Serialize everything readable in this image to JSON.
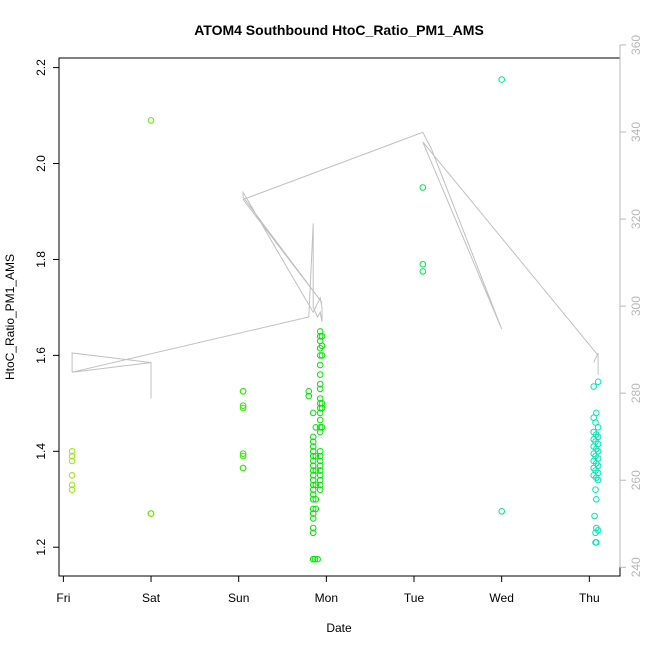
{
  "chart_data": {
    "type": "scatter",
    "title": "ATOM4 Southbound HtoC_Ratio_PM1_AMS",
    "xlabel": "Date",
    "ylabel": "HtoC_Ratio_PM1_AMS",
    "x_ticks": [
      "Fri",
      "Sat",
      "Sun",
      "Mon",
      "Tue",
      "Wed",
      "Thu"
    ],
    "xlim": [
      -0.05,
      6.35
    ],
    "ylim": [
      1.14,
      2.22
    ],
    "y_ticks": [
      1.2,
      1.4,
      1.6,
      1.8,
      2.0,
      2.2
    ],
    "y2lim": [
      238,
      357
    ],
    "y2_ticks": [
      240,
      260,
      280,
      300,
      320,
      340,
      360
    ],
    "grid": false,
    "point_colors": {
      "fri": "#99e600",
      "sat": "#66e600",
      "sun": "#33e600",
      "mon": "#00e600",
      "tue": "#00e64d",
      "wed": "#00e680",
      "thu": "#00e6b3"
    },
    "overlay_line_color": "#c0c0c0",
    "series": [
      {
        "color_key": "fri",
        "points": [
          [
            0.1,
            1.4
          ],
          [
            0.1,
            1.38
          ],
          [
            0.1,
            1.39
          ],
          [
            0.1,
            1.35
          ],
          [
            0.1,
            1.33
          ],
          [
            0.1,
            1.32
          ]
        ]
      },
      {
        "color_key": "sat",
        "points": [
          [
            1.0,
            2.09
          ],
          [
            1.0,
            1.27
          ],
          [
            1.0,
            1.27
          ]
        ]
      },
      {
        "color_key": "sun",
        "points": [
          [
            2.05,
            1.525
          ],
          [
            2.05,
            1.525
          ],
          [
            2.05,
            1.495
          ],
          [
            2.05,
            1.49
          ],
          [
            2.05,
            1.395
          ],
          [
            2.05,
            1.39
          ],
          [
            2.05,
            1.365
          ],
          [
            2.05,
            1.365
          ]
        ]
      },
      {
        "color_key": "mon",
        "points": [
          [
            2.8,
            1.525
          ],
          [
            2.8,
            1.515
          ],
          [
            2.85,
            1.48
          ],
          [
            2.85,
            1.43
          ],
          [
            2.85,
            1.42
          ],
          [
            2.85,
            1.41
          ],
          [
            2.85,
            1.4
          ],
          [
            2.85,
            1.39
          ],
          [
            2.85,
            1.38
          ],
          [
            2.85,
            1.37
          ],
          [
            2.85,
            1.36
          ],
          [
            2.85,
            1.35
          ],
          [
            2.85,
            1.34
          ],
          [
            2.85,
            1.33
          ],
          [
            2.85,
            1.32
          ],
          [
            2.85,
            1.31
          ],
          [
            2.85,
            1.3
          ],
          [
            2.85,
            1.28
          ],
          [
            2.85,
            1.27
          ],
          [
            2.85,
            1.26
          ],
          [
            2.85,
            1.24
          ],
          [
            2.85,
            1.23
          ],
          [
            2.85,
            1.175
          ],
          [
            2.87,
            1.175
          ],
          [
            2.9,
            1.175
          ],
          [
            2.88,
            1.45
          ],
          [
            2.88,
            1.39
          ],
          [
            2.88,
            1.36
          ],
          [
            2.88,
            1.33
          ],
          [
            2.88,
            1.3
          ],
          [
            2.88,
            1.28
          ],
          [
            2.93,
            1.65
          ],
          [
            2.93,
            1.64
          ],
          [
            2.93,
            1.63
          ],
          [
            2.93,
            1.615
          ],
          [
            2.93,
            1.6
          ],
          [
            2.93,
            1.58
          ],
          [
            2.93,
            1.56
          ],
          [
            2.93,
            1.54
          ],
          [
            2.93,
            1.53
          ],
          [
            2.93,
            1.51
          ],
          [
            2.93,
            1.5
          ],
          [
            2.93,
            1.49
          ],
          [
            2.93,
            1.48
          ],
          [
            2.93,
            1.465
          ],
          [
            2.93,
            1.45
          ],
          [
            2.93,
            1.44
          ],
          [
            2.93,
            1.4
          ],
          [
            2.93,
            1.39
          ],
          [
            2.93,
            1.38
          ],
          [
            2.93,
            1.37
          ],
          [
            2.93,
            1.36
          ],
          [
            2.93,
            1.35
          ],
          [
            2.93,
            1.34
          ],
          [
            2.93,
            1.33
          ],
          [
            2.93,
            1.32
          ],
          [
            2.95,
            1.64
          ],
          [
            2.95,
            1.62
          ],
          [
            2.95,
            1.6
          ],
          [
            2.95,
            1.5
          ],
          [
            2.95,
            1.49
          ],
          [
            2.95,
            1.45
          ]
        ]
      },
      {
        "color_key": "tue",
        "points": [
          [
            4.1,
            1.95
          ],
          [
            4.1,
            1.79
          ],
          [
            4.1,
            1.775
          ]
        ]
      },
      {
        "color_key": "wed",
        "points": [
          [
            5.0,
            2.175
          ],
          [
            5.0,
            1.275
          ]
        ]
      },
      {
        "color_key": "thu",
        "points": [
          [
            6.05,
            1.535
          ],
          [
            6.1,
            1.545
          ],
          [
            6.08,
            1.48
          ],
          [
            6.05,
            1.47
          ],
          [
            6.07,
            1.46
          ],
          [
            6.1,
            1.45
          ],
          [
            6.05,
            1.44
          ],
          [
            6.08,
            1.435
          ],
          [
            6.1,
            1.43
          ],
          [
            6.05,
            1.425
          ],
          [
            6.07,
            1.42
          ],
          [
            6.1,
            1.415
          ],
          [
            6.05,
            1.41
          ],
          [
            6.08,
            1.405
          ],
          [
            6.1,
            1.4
          ],
          [
            6.05,
            1.395
          ],
          [
            6.07,
            1.39
          ],
          [
            6.1,
            1.385
          ],
          [
            6.05,
            1.38
          ],
          [
            6.08,
            1.375
          ],
          [
            6.1,
            1.37
          ],
          [
            6.05,
            1.365
          ],
          [
            6.07,
            1.36
          ],
          [
            6.1,
            1.355
          ],
          [
            6.05,
            1.35
          ],
          [
            6.08,
            1.345
          ],
          [
            6.1,
            1.34
          ],
          [
            6.07,
            1.32
          ],
          [
            6.08,
            1.3
          ],
          [
            6.06,
            1.265
          ],
          [
            6.08,
            1.24
          ],
          [
            6.1,
            1.235
          ],
          [
            6.07,
            1.23
          ],
          [
            6.07,
            1.21
          ],
          [
            6.08,
            1.21
          ]
        ]
      }
    ],
    "overlay_line": [
      [
        0.1,
        1.565
      ],
      [
        0.1,
        1.605
      ],
      [
        0.55,
        1.595
      ],
      [
        1.0,
        1.585
      ],
      [
        1.0,
        1.51
      ],
      [
        1.0,
        1.585
      ],
      [
        0.1,
        1.565
      ],
      [
        2.8,
        1.68
      ],
      [
        2.85,
        1.875
      ],
      [
        2.85,
        1.7
      ],
      [
        2.9,
        1.68
      ],
      [
        2.93,
        1.69
      ],
      [
        2.95,
        1.67
      ],
      [
        2.95,
        1.7
      ],
      [
        2.93,
        1.72
      ],
      [
        2.85,
        1.69
      ],
      [
        2.05,
        1.94
      ],
      [
        2.05,
        1.93
      ],
      [
        2.95,
        1.71
      ],
      [
        2.05,
        1.925
      ],
      [
        4.1,
        2.065
      ],
      [
        4.2,
        2.03
      ],
      [
        5.0,
        1.655
      ],
      [
        4.1,
        2.045
      ],
      [
        6.1,
        1.6
      ],
      [
        6.1,
        1.56
      ],
      [
        6.1,
        1.605
      ],
      [
        6.05,
        1.585
      ]
    ]
  }
}
